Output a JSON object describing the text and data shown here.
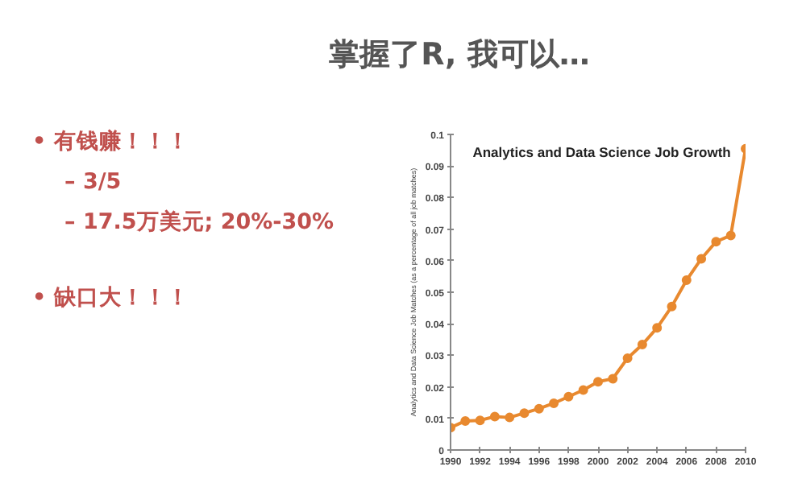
{
  "chart_data": {
    "type": "line",
    "title": "Analytics and Data Science Job Growth",
    "ylabel": "Analytics and Data Science Job Matches (as a percentage of all job matches)",
    "annotations": [
      "掌握了R, 我可以…",
      "• 有钱赚！！！",
      "– 3/5",
      "– 17.5万美元; 20%-30%",
      "• 缺口大！！！"
    ],
    "x": [
      1990,
      1991,
      1992,
      1993,
      1994,
      1995,
      1996,
      1997,
      1998,
      1999,
      2000,
      2001,
      2002,
      2003,
      2004,
      2005,
      2006,
      2007,
      2008,
      2009,
      2010
    ],
    "series": [
      {
        "color": "#e8892f",
        "values": [
          0.0071,
          0.0092,
          0.0094,
          0.0106,
          0.0103,
          0.0117,
          0.0131,
          0.0148,
          0.0169,
          0.019,
          0.0216,
          0.0226,
          0.0291,
          0.0334,
          0.0387,
          0.0455,
          0.0538,
          0.0606,
          0.066,
          0.068,
          0.0955
        ]
      }
    ],
    "xlim": [
      1990,
      2010
    ],
    "xticks": [
      1990,
      1992,
      1994,
      1996,
      1998,
      2000,
      2002,
      2004,
      2006,
      2008,
      2010
    ],
    "ylim": [
      0,
      0.1
    ],
    "yticks": [
      0,
      0.01,
      0.02,
      0.03,
      0.04,
      0.05,
      0.06,
      0.07,
      0.08,
      0.09,
      0.1
    ],
    "grid": false,
    "marker": "circle",
    "line_style": "solid"
  }
}
